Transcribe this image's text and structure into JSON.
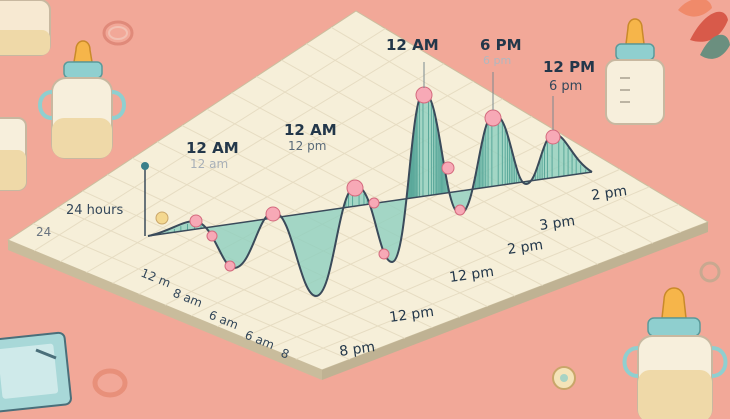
{
  "colors": {
    "background": "#f2a898",
    "paper": "#f6efd9",
    "paper_edge": "#d9cdb4",
    "wave_fill": "#8fcfbf",
    "wave_stroke": "#3a4a5a",
    "dot_fill": "#f7a9b6",
    "bottle_body": "#f7e9d2",
    "bottle_cap": "#8fcfcf",
    "nipple": "#f6b54a"
  },
  "peak_labels": [
    {
      "main": "12 AM",
      "sub": "12 am"
    },
    {
      "main": "12 AM",
      "sub": "12 pm"
    },
    {
      "main": "12 AM",
      "sub": ""
    },
    {
      "main": "6 PM",
      "sub": "6 pm"
    },
    {
      "main": "12 PM",
      "sub": "6 pm"
    }
  ],
  "y_axis_label": "24 hours",
  "y_axis_value": "24",
  "x_tick_labels": [
    "12 m",
    "8 am",
    "6 am",
    "6 am",
    "8"
  ],
  "bottom_labels": [
    "8 pm",
    "12 pm",
    "12 pm",
    "2 pm",
    "3 pm",
    "2 pm"
  ],
  "icons": [
    "baby-bottle-icon",
    "pacifier-ring-icon",
    "leaf-icon",
    "notebook-icon",
    "rattle-icon"
  ]
}
